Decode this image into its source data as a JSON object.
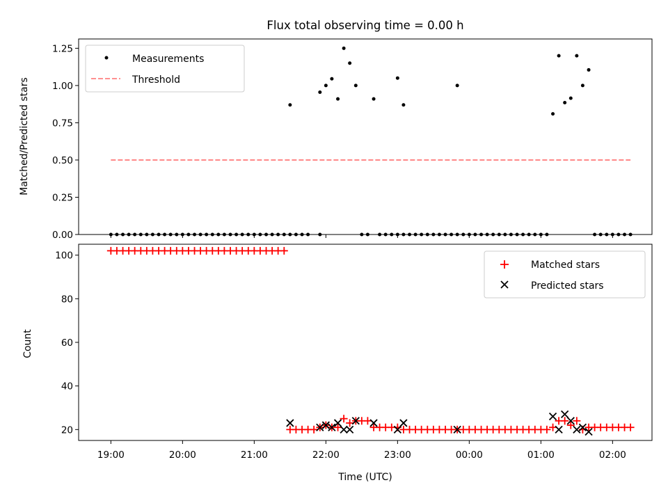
{
  "chart_data": [
    {
      "type": "scatter",
      "title": "Flux total observing time = 0.00 h",
      "ylabel": "Matched/Predicted stars",
      "xlabel": "",
      "x_unit": "hours relative to 19:00 UTC",
      "xlim": [
        -0.45,
        7.55
      ],
      "ylim": [
        0,
        1.3125
      ],
      "yticks": [
        0.0,
        0.25,
        0.5,
        0.75,
        1.0,
        1.25
      ],
      "ytick_labels": [
        "0.00",
        "0.25",
        "0.50",
        "0.75",
        "1.00",
        "1.25"
      ],
      "grid": false,
      "legend_position": "upper left",
      "series": [
        {
          "name": "Measurements",
          "marker": "dot",
          "color": "#000000",
          "points": [
            [
              0,
              0
            ],
            [
              0.083,
              0
            ],
            [
              0.167,
              0
            ],
            [
              0.25,
              0
            ],
            [
              0.333,
              0
            ],
            [
              0.417,
              0
            ],
            [
              0.5,
              0
            ],
            [
              0.583,
              0
            ],
            [
              0.667,
              0
            ],
            [
              0.75,
              0
            ],
            [
              0.833,
              0
            ],
            [
              0.917,
              0
            ],
            [
              1.0,
              0
            ],
            [
              1.083,
              0
            ],
            [
              1.167,
              0
            ],
            [
              1.25,
              0
            ],
            [
              1.333,
              0
            ],
            [
              1.417,
              0
            ],
            [
              1.5,
              0
            ],
            [
              1.583,
              0
            ],
            [
              1.667,
              0
            ],
            [
              1.75,
              0
            ],
            [
              1.833,
              0
            ],
            [
              1.917,
              0
            ],
            [
              2.0,
              0
            ],
            [
              2.083,
              0
            ],
            [
              2.167,
              0
            ],
            [
              2.25,
              0
            ],
            [
              2.333,
              0
            ],
            [
              2.417,
              0
            ],
            [
              2.5,
              0.87
            ],
            [
              2.5,
              0
            ],
            [
              2.583,
              0
            ],
            [
              2.667,
              0
            ],
            [
              2.75,
              0
            ],
            [
              2.917,
              0.955
            ],
            [
              2.917,
              0
            ],
            [
              3.0,
              1.0
            ],
            [
              3.083,
              1.045
            ],
            [
              3.167,
              0.91
            ],
            [
              3.25,
              1.25
            ],
            [
              3.333,
              1.15
            ],
            [
              3.417,
              1.0
            ],
            [
              3.5,
              0
            ],
            [
              3.583,
              0
            ],
            [
              3.667,
              0.91
            ],
            [
              3.75,
              0
            ],
            [
              3.833,
              0
            ],
            [
              3.917,
              0
            ],
            [
              4.0,
              1.05
            ],
            [
              4.0,
              0
            ],
            [
              4.083,
              0.87
            ],
            [
              4.083,
              0
            ],
            [
              4.167,
              0
            ],
            [
              4.25,
              0
            ],
            [
              4.333,
              0
            ],
            [
              4.417,
              0
            ],
            [
              4.5,
              0
            ],
            [
              4.583,
              0
            ],
            [
              4.667,
              0
            ],
            [
              4.75,
              0
            ],
            [
              4.833,
              1.0
            ],
            [
              4.833,
              0
            ],
            [
              4.917,
              0
            ],
            [
              5.0,
              0
            ],
            [
              5.083,
              0
            ],
            [
              5.167,
              0
            ],
            [
              5.25,
              0
            ],
            [
              5.333,
              0
            ],
            [
              5.417,
              0
            ],
            [
              5.5,
              0
            ],
            [
              5.583,
              0
            ],
            [
              5.667,
              0
            ],
            [
              5.75,
              0
            ],
            [
              5.833,
              0
            ],
            [
              5.917,
              0
            ],
            [
              6.0,
              0
            ],
            [
              6.083,
              0
            ],
            [
              6.167,
              0.81
            ],
            [
              6.25,
              1.2
            ],
            [
              6.333,
              0.885
            ],
            [
              6.417,
              0.915
            ],
            [
              6.5,
              1.2
            ],
            [
              6.583,
              1.0
            ],
            [
              6.667,
              1.105
            ],
            [
              6.75,
              0
            ],
            [
              6.833,
              0
            ],
            [
              6.917,
              0
            ],
            [
              7.0,
              0
            ],
            [
              7.083,
              0
            ],
            [
              7.167,
              0
            ],
            [
              7.25,
              0
            ]
          ]
        },
        {
          "name": "Threshold",
          "marker": "dashed-line",
          "color": "#ff8080",
          "points": [
            [
              0,
              0.5
            ],
            [
              7.25,
              0.5
            ]
          ]
        }
      ]
    },
    {
      "type": "scatter",
      "title": "",
      "ylabel": "Count",
      "xlabel": "Time (UTC)",
      "x_unit": "hours relative to 19:00 UTC",
      "xlim": [
        -0.45,
        7.55
      ],
      "ylim": [
        15,
        105
      ],
      "yticks": [
        20,
        40,
        60,
        80,
        100
      ],
      "ytick_labels": [
        "20",
        "40",
        "60",
        "80",
        "100"
      ],
      "xticks": [
        0,
        1,
        2,
        3,
        4,
        5,
        6,
        7
      ],
      "xtick_labels": [
        "19:00",
        "20:00",
        "21:00",
        "22:00",
        "23:00",
        "00:00",
        "01:00",
        "02:00"
      ],
      "grid": false,
      "legend_position": "upper right",
      "series": [
        {
          "name": "Matched stars",
          "marker": "plus",
          "color": "#ff0000",
          "points": [
            [
              0,
              102
            ],
            [
              0.083,
              102
            ],
            [
              0.167,
              102
            ],
            [
              0.25,
              102
            ],
            [
              0.333,
              102
            ],
            [
              0.417,
              102
            ],
            [
              0.5,
              102
            ],
            [
              0.583,
              102
            ],
            [
              0.667,
              102
            ],
            [
              0.75,
              102
            ],
            [
              0.833,
              102
            ],
            [
              0.917,
              102
            ],
            [
              1.0,
              102
            ],
            [
              1.083,
              102
            ],
            [
              1.167,
              102
            ],
            [
              1.25,
              102
            ],
            [
              1.333,
              102
            ],
            [
              1.417,
              102
            ],
            [
              1.5,
              102
            ],
            [
              1.583,
              102
            ],
            [
              1.667,
              102
            ],
            [
              1.75,
              102
            ],
            [
              1.833,
              102
            ],
            [
              1.917,
              102
            ],
            [
              2.0,
              102
            ],
            [
              2.083,
              102
            ],
            [
              2.167,
              102
            ],
            [
              2.25,
              102
            ],
            [
              2.333,
              102
            ],
            [
              2.417,
              102
            ],
            [
              2.5,
              20
            ],
            [
              2.583,
              20
            ],
            [
              2.667,
              20
            ],
            [
              2.75,
              20
            ],
            [
              2.833,
              20
            ],
            [
              2.917,
              21
            ],
            [
              3.0,
              22
            ],
            [
              3.083,
              21
            ],
            [
              3.167,
              21
            ],
            [
              3.25,
              25
            ],
            [
              3.333,
              23
            ],
            [
              3.417,
              24
            ],
            [
              3.5,
              24
            ],
            [
              3.583,
              24
            ],
            [
              3.667,
              21
            ],
            [
              3.75,
              21
            ],
            [
              3.833,
              21
            ],
            [
              3.917,
              21
            ],
            [
              4.0,
              21
            ],
            [
              4.083,
              20
            ],
            [
              4.167,
              20
            ],
            [
              4.25,
              20
            ],
            [
              4.333,
              20
            ],
            [
              4.417,
              20
            ],
            [
              4.5,
              20
            ],
            [
              4.583,
              20
            ],
            [
              4.667,
              20
            ],
            [
              4.75,
              20
            ],
            [
              4.833,
              20
            ],
            [
              4.917,
              20
            ],
            [
              5.0,
              20
            ],
            [
              5.083,
              20
            ],
            [
              5.167,
              20
            ],
            [
              5.25,
              20
            ],
            [
              5.333,
              20
            ],
            [
              5.417,
              20
            ],
            [
              5.5,
              20
            ],
            [
              5.583,
              20
            ],
            [
              5.667,
              20
            ],
            [
              5.75,
              20
            ],
            [
              5.833,
              20
            ],
            [
              5.917,
              20
            ],
            [
              6.0,
              20
            ],
            [
              6.083,
              20
            ],
            [
              6.167,
              21
            ],
            [
              6.25,
              24
            ],
            [
              6.333,
              24
            ],
            [
              6.417,
              22
            ],
            [
              6.5,
              24
            ],
            [
              6.583,
              20
            ],
            [
              6.667,
              21
            ],
            [
              6.75,
              21
            ],
            [
              6.833,
              21
            ],
            [
              6.917,
              21
            ],
            [
              7.0,
              21
            ],
            [
              7.083,
              21
            ],
            [
              7.167,
              21
            ],
            [
              7.25,
              21
            ]
          ]
        },
        {
          "name": "Predicted stars",
          "marker": "x",
          "color": "#000000",
          "points": [
            [
              2.5,
              23
            ],
            [
              2.917,
              21
            ],
            [
              3.0,
              22
            ],
            [
              3.083,
              21
            ],
            [
              3.167,
              23
            ],
            [
              3.25,
              20
            ],
            [
              3.333,
              20
            ],
            [
              3.417,
              24
            ],
            [
              3.667,
              23
            ],
            [
              4.0,
              20
            ],
            [
              4.083,
              23
            ],
            [
              4.833,
              20
            ],
            [
              6.167,
              26
            ],
            [
              6.25,
              20
            ],
            [
              6.333,
              27
            ],
            [
              6.417,
              24
            ],
            [
              6.5,
              20
            ],
            [
              6.583,
              21
            ],
            [
              6.667,
              19
            ]
          ]
        }
      ]
    }
  ]
}
